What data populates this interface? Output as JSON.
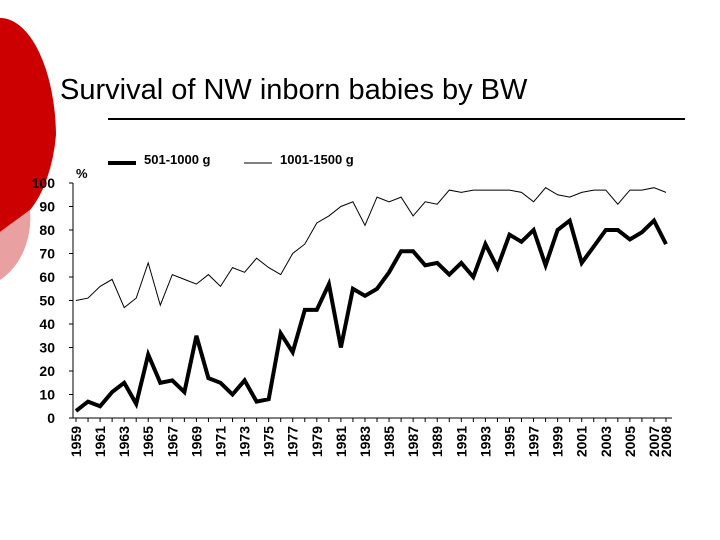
{
  "slide": {
    "title": "Survival of NW inborn babies by BW",
    "colors": {
      "accent_red": "#cc0000",
      "accent_pink": "#e8a0a0"
    }
  },
  "chart_data": {
    "type": "line",
    "title": "",
    "xlabel": "",
    "ylabel": "%",
    "ylim": [
      0,
      100
    ],
    "yticks": [
      0,
      10,
      20,
      30,
      40,
      50,
      60,
      70,
      80,
      90,
      100
    ],
    "xtick_labels": [
      "1959",
      "1961",
      "1963",
      "1965",
      "1967",
      "1969",
      "1971",
      "1973",
      "1975",
      "1977",
      "1979",
      "1981",
      "1983",
      "1985",
      "1987",
      "1989",
      "1991",
      "1993",
      "1995",
      "1997",
      "1999",
      "2001",
      "2003",
      "2005",
      "2007",
      "2008"
    ],
    "grid": false,
    "legend_position": "top",
    "x": [
      1959,
      1960,
      1961,
      1962,
      1963,
      1964,
      1965,
      1966,
      1967,
      1968,
      1969,
      1970,
      1971,
      1972,
      1973,
      1974,
      1975,
      1976,
      1977,
      1978,
      1979,
      1980,
      1981,
      1982,
      1983,
      1984,
      1985,
      1986,
      1987,
      1988,
      1989,
      1990,
      1991,
      1992,
      1993,
      1994,
      1995,
      1996,
      1997,
      1998,
      1999,
      2000,
      2001,
      2002,
      2003,
      2004,
      2005,
      2006,
      2007,
      2008
    ],
    "series": [
      {
        "name": "501-1000 g",
        "style": "thick",
        "values": [
          3,
          7,
          5,
          11,
          15,
          6,
          27,
          15,
          16,
          11,
          35,
          17,
          15,
          10,
          16,
          7,
          8,
          36,
          28,
          46,
          46,
          57,
          30,
          55,
          52,
          55,
          62,
          71,
          71,
          65,
          66,
          61,
          66,
          60,
          74,
          64,
          78,
          75,
          80,
          65,
          80,
          84,
          66,
          73,
          80,
          80,
          76,
          79,
          84,
          74
        ]
      },
      {
        "name": "1001-1500 g",
        "style": "thin",
        "values": [
          50,
          51,
          56,
          59,
          47,
          51,
          66,
          48,
          61,
          59,
          57,
          61,
          56,
          64,
          62,
          68,
          64,
          61,
          70,
          74,
          83,
          86,
          90,
          92,
          82,
          94,
          92,
          94,
          86,
          92,
          91,
          97,
          96,
          97,
          97,
          97,
          97,
          96,
          92,
          98,
          95,
          94,
          96,
          97,
          97,
          91,
          97,
          97,
          98,
          96
        ]
      }
    ]
  }
}
